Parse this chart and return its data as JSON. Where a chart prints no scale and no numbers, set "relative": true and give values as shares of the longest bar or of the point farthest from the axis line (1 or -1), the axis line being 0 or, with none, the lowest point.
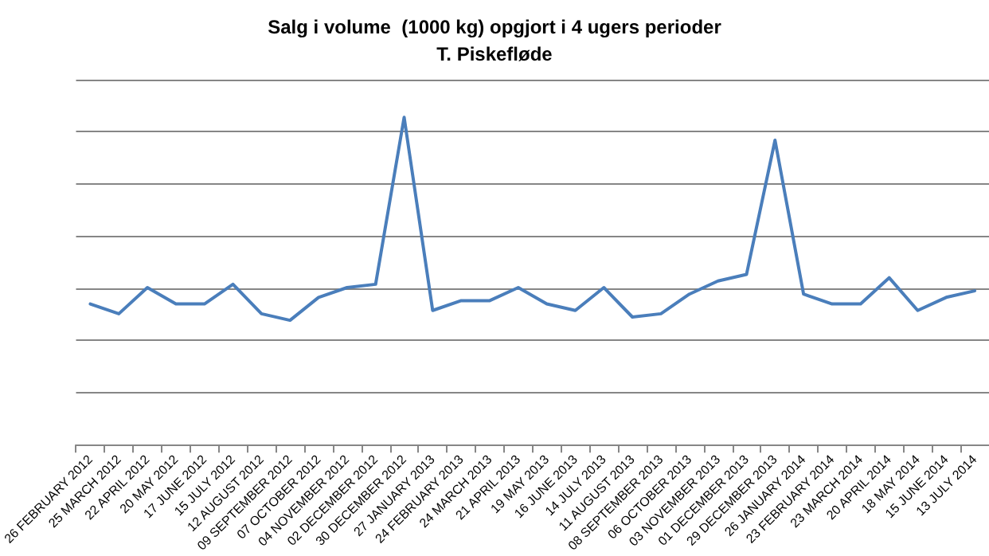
{
  "chart_data": {
    "type": "line",
    "title": "Salg i volume  (1000 kg) opgjort i 4 ugers perioder",
    "subtitle": "T. Piskefløde",
    "relative": true,
    "grid": "y",
    "marker": "none",
    "line_style": "solid",
    "categories": [
      "26 FEBRUARY 2012",
      "25 MARCH 2012",
      "22 APRIL 2012",
      "20 MAY 2012",
      "17 JUNE 2012",
      "15 JULY 2012",
      "12 AUGUST 2012",
      "09 SEPTEMBER 2012",
      "07 OCTOBER 2012",
      "04 NOVEMBER 2012",
      "02 DECEMBER 2012",
      "30 DECEMBER 2012",
      "27 JANUARY 2013",
      "24 FEBRUARY 2013",
      "24 MARCH 2013",
      "21 APRIL 2013",
      "19 MAY 2013",
      "16 JUNE 2013",
      "14 JULY 2013",
      "11 AUGUST 2013",
      "08 SEPTEMBER 2013",
      "06 OCTOBER 2013",
      "03 NOVEMBER 2013",
      "01 DECEMBER 2013",
      "29 DECEMBER 2013",
      "26 JANUARY 2014",
      "23 FEBRUARY 2014",
      "23 MARCH 2014",
      "20 APRIL 2014",
      "18 MAY 2014",
      "15 JUNE 2014",
      "13 JULY 2014"
    ],
    "series": [
      {
        "color": "#4a7ebb",
        "values": [
          0.43,
          0.4,
          0.48,
          0.43,
          0.43,
          0.49,
          0.4,
          0.38,
          0.45,
          0.48,
          0.49,
          1,
          0.41,
          0.44,
          0.44,
          0.48,
          0.43,
          0.41,
          0.48,
          0.39,
          0.4,
          0.46,
          0.5,
          0.52,
          0.93,
          0.46,
          0.43,
          0.43,
          0.51,
          0.41,
          0.45,
          0.47
        ]
      }
    ]
  }
}
